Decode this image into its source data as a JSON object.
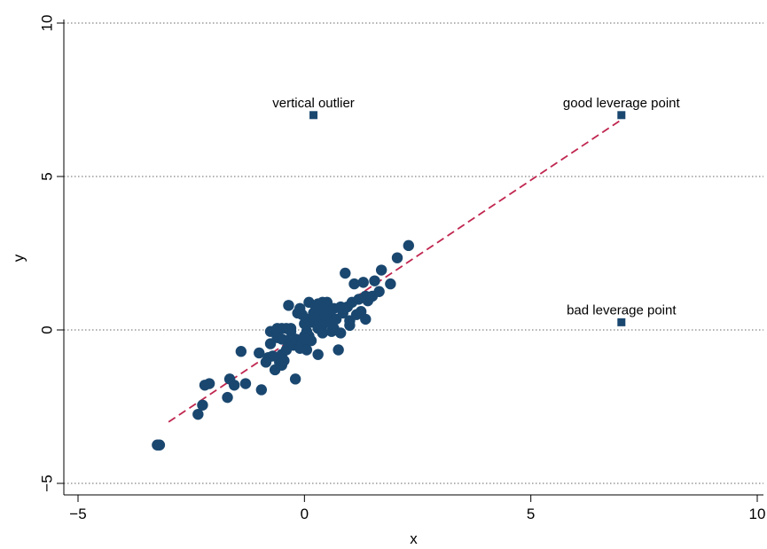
{
  "chart_data": {
    "type": "scatter",
    "xlabel": "x",
    "ylabel": "y",
    "xlim": [
      -5,
      10
    ],
    "ylim": [
      -5,
      10
    ],
    "xticks": [
      -5,
      0,
      5,
      10
    ],
    "yticks": [
      -5,
      0,
      5,
      10
    ],
    "xtick_labels": [
      "−5",
      "0",
      "5",
      "10"
    ],
    "ytick_labels": [
      "−5",
      "0",
      "5",
      "10"
    ],
    "grid": "horizontal dotted",
    "colors": {
      "points": "#1a476f",
      "fit_line": "#c0264f",
      "grid": "#666666"
    },
    "series": [
      {
        "marker": "circle",
        "points": [
          [
            -3.25,
            -3.75
          ],
          [
            -3.2,
            -3.75
          ],
          [
            -2.35,
            -2.75
          ],
          [
            -2.25,
            -2.45
          ],
          [
            -2.2,
            -1.8
          ],
          [
            -2.1,
            -1.75
          ],
          [
            -1.7,
            -2.2
          ],
          [
            -1.65,
            -1.6
          ],
          [
            -1.55,
            -1.8
          ],
          [
            -1.4,
            -0.7
          ],
          [
            -1.3,
            -1.75
          ],
          [
            -1.0,
            -0.75
          ],
          [
            -0.95,
            -1.95
          ],
          [
            -0.85,
            -1.05
          ],
          [
            -0.8,
            -0.9
          ],
          [
            -0.75,
            -0.45
          ],
          [
            -0.75,
            -0.05
          ],
          [
            -0.7,
            -0.85
          ],
          [
            -0.65,
            -1.3
          ],
          [
            -0.6,
            -0.25
          ],
          [
            -0.6,
            0.05
          ],
          [
            -0.55,
            -1.05
          ],
          [
            -0.5,
            -0.8
          ],
          [
            -0.5,
            -0.3
          ],
          [
            -0.5,
            0.05
          ],
          [
            -0.5,
            -1.15
          ],
          [
            -0.45,
            -1.0
          ],
          [
            -0.4,
            -0.65
          ],
          [
            -0.4,
            -0.35
          ],
          [
            -0.4,
            0.05
          ],
          [
            -0.35,
            0.8
          ],
          [
            -0.3,
            -0.05
          ],
          [
            -0.3,
            0.05
          ],
          [
            -0.3,
            -0.45
          ],
          [
            -0.25,
            -0.5
          ],
          [
            -0.2,
            -1.6
          ],
          [
            -0.2,
            -0.3
          ],
          [
            -0.15,
            0.55
          ],
          [
            -0.1,
            0.7
          ],
          [
            -0.1,
            -0.6
          ],
          [
            -0.05,
            -0.35
          ],
          [
            -0.05,
            -0.45
          ],
          [
            -0.05,
            0.5
          ],
          [
            0.0,
            -0.2
          ],
          [
            0.0,
            0.2
          ],
          [
            0.0,
            -0.3
          ],
          [
            0.05,
            -0.05
          ],
          [
            0.05,
            0.35
          ],
          [
            0.05,
            -0.65
          ],
          [
            0.1,
            -0.2
          ],
          [
            0.1,
            0.9
          ],
          [
            0.15,
            -0.35
          ],
          [
            0.15,
            0.25
          ],
          [
            0.2,
            0.45
          ],
          [
            0.2,
            0.55
          ],
          [
            0.25,
            0.75
          ],
          [
            0.3,
            0.3
          ],
          [
            0.3,
            0.85
          ],
          [
            0.3,
            -0.8
          ],
          [
            0.3,
            0.05
          ],
          [
            0.35,
            0.55
          ],
          [
            0.35,
            0.65
          ],
          [
            0.4,
            0.9
          ],
          [
            0.4,
            0.15
          ],
          [
            0.4,
            -0.1
          ],
          [
            0.45,
            0.45
          ],
          [
            0.45,
            0.75
          ],
          [
            0.5,
            0.25
          ],
          [
            0.5,
            0.9
          ],
          [
            0.55,
            0.55
          ],
          [
            0.6,
            -0.05
          ],
          [
            0.6,
            0.4
          ],
          [
            0.65,
            0.7
          ],
          [
            0.65,
            0.05
          ],
          [
            0.7,
            0.35
          ],
          [
            0.75,
            -0.65
          ],
          [
            0.8,
            0.75
          ],
          [
            0.8,
            -0.1
          ],
          [
            0.85,
            0.55
          ],
          [
            0.9,
            1.85
          ],
          [
            0.95,
            0.75
          ],
          [
            1.0,
            0.3
          ],
          [
            1.0,
            0.15
          ],
          [
            1.05,
            0.9
          ],
          [
            1.1,
            1.5
          ],
          [
            1.15,
            0.5
          ],
          [
            1.2,
            1.0
          ],
          [
            1.25,
            0.6
          ],
          [
            1.3,
            1.55
          ],
          [
            1.35,
            0.35
          ],
          [
            1.35,
            1.1
          ],
          [
            1.4,
            0.95
          ],
          [
            1.5,
            1.1
          ],
          [
            1.55,
            1.6
          ],
          [
            1.65,
            1.25
          ],
          [
            1.7,
            1.95
          ],
          [
            1.9,
            1.5
          ],
          [
            2.05,
            2.35
          ],
          [
            2.3,
            2.75
          ]
        ]
      },
      {
        "marker": "square",
        "points": [
          [
            0.2,
            7.0
          ],
          [
            7.0,
            7.0
          ],
          [
            7.0,
            0.25
          ]
        ]
      }
    ],
    "fit_line": {
      "style": "dashed",
      "x": [
        -3.0,
        7.0
      ],
      "y": [
        -3.0,
        6.85
      ]
    },
    "annotations": [
      {
        "text": "vertical outlier",
        "x": 0.2,
        "y": 7.0
      },
      {
        "text": "good leverage point",
        "x": 7.0,
        "y": 7.0
      },
      {
        "text": "bad leverage point",
        "x": 7.0,
        "y": 0.25
      }
    ]
  }
}
